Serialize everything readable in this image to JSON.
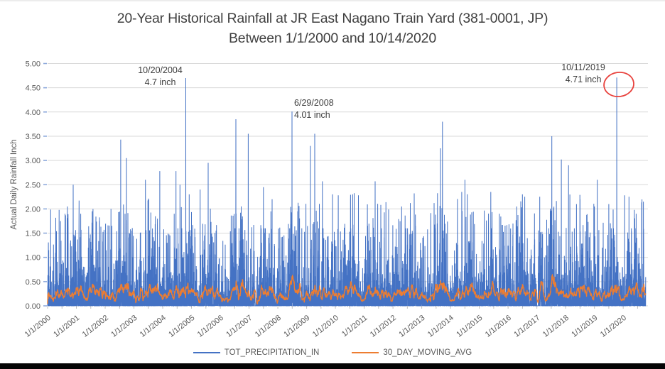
{
  "chart_data": {
    "type": "line",
    "title": "20-Year Historical Rainfall at JR East Nagano Train Yard (381-0001, JP)",
    "subtitle": "Between 1/1/2000 and 10/14/2020",
    "ylabel": "Actual Daily Rainfall Inch",
    "ylim": [
      0,
      5
    ],
    "ytick_step": 0.5,
    "y_ticks": [
      "5.00",
      "4.50",
      "4.00",
      "3.50",
      "3.00",
      "2.50",
      "2.00",
      "1.50",
      "1.00",
      "0.50",
      "0.00"
    ],
    "x_ticks": [
      "1/1/2000",
      "1/1/2001",
      "1/1/2002",
      "1/1/2003",
      "1/1/2004",
      "1/1/2005",
      "1/1/2006",
      "1/1/2007",
      "1/1/2008",
      "1/1/2009",
      "1/1/2010",
      "1/1/2011",
      "1/1/2012",
      "1/1/2013",
      "1/1/2014",
      "1/1/2015",
      "1/1/2016",
      "1/1/2017",
      "1/1/2018",
      "1/1/2019",
      "1/1/2020"
    ],
    "x_start": "1/1/2000",
    "x_end": "10/14/2020",
    "grid": true,
    "legend_position": "bottom",
    "series": [
      {
        "name": "TOT_PRECIPITATION_IN",
        "color": "#4472C4",
        "kind": "daily"
      },
      {
        "name": "30_DAY_MOVING_AVG",
        "color": "#ED7D31",
        "kind": "moving-average",
        "window_days": 30
      }
    ],
    "annotations": [
      {
        "date": "10/20/2004",
        "value_label": "4.7 inch",
        "value": 4.7,
        "year": 2004.802,
        "circled": false
      },
      {
        "date": "6/29/2008",
        "value_label": "4.01 inch",
        "value": 4.01,
        "year": 2008.493,
        "circled": false
      },
      {
        "date": "10/11/2019",
        "value_label": "4.71 inch",
        "value": 4.71,
        "year": 2019.775,
        "circled": true
      }
    ],
    "notable_peaks": [
      {
        "year": 2000.45,
        "value": 1.75
      },
      {
        "year": 2000.69,
        "value": 2.05
      },
      {
        "year": 2000.89,
        "value": 2.5
      },
      {
        "year": 2001.15,
        "value": 1.9
      },
      {
        "year": 2001.55,
        "value": 1.95
      },
      {
        "year": 2001.8,
        "value": 1.75
      },
      {
        "year": 2002.2,
        "value": 2.0
      },
      {
        "year": 2002.54,
        "value": 3.43
      },
      {
        "year": 2002.74,
        "value": 3.05
      },
      {
        "year": 2003.4,
        "value": 2.6
      },
      {
        "year": 2003.9,
        "value": 2.78
      },
      {
        "year": 2004.46,
        "value": 2.78
      },
      {
        "year": 2004.6,
        "value": 2.5
      },
      {
        "year": 2004.92,
        "value": 2.3
      },
      {
        "year": 2005.3,
        "value": 2.4
      },
      {
        "year": 2005.58,
        "value": 2.95
      },
      {
        "year": 2006.54,
        "value": 3.85
      },
      {
        "year": 2006.97,
        "value": 3.55
      },
      {
        "year": 2007.5,
        "value": 2.45
      },
      {
        "year": 2007.8,
        "value": 2.2
      },
      {
        "year": 2009.13,
        "value": 3.3
      },
      {
        "year": 2009.28,
        "value": 3.55
      },
      {
        "year": 2009.55,
        "value": 2.57
      },
      {
        "year": 2009.9,
        "value": 2.3
      },
      {
        "year": 2010.1,
        "value": 2.28
      },
      {
        "year": 2010.6,
        "value": 2.3
      },
      {
        "year": 2010.8,
        "value": 2.28
      },
      {
        "year": 2011.38,
        "value": 2.57
      },
      {
        "year": 2011.7,
        "value": 1.93
      },
      {
        "year": 2011.85,
        "value": 1.99
      },
      {
        "year": 2012.3,
        "value": 2.05
      },
      {
        "year": 2012.74,
        "value": 2.32
      },
      {
        "year": 2013.65,
        "value": 3.25
      },
      {
        "year": 2013.72,
        "value": 3.8
      },
      {
        "year": 2014.39,
        "value": 2.35
      },
      {
        "year": 2014.5,
        "value": 2.6
      },
      {
        "year": 2015.4,
        "value": 2.35
      },
      {
        "year": 2015.7,
        "value": 1.9
      },
      {
        "year": 2016.3,
        "value": 2.05
      },
      {
        "year": 2016.58,
        "value": 2.25
      },
      {
        "year": 2017.1,
        "value": 2.25
      },
      {
        "year": 2017.52,
        "value": 3.5
      },
      {
        "year": 2017.85,
        "value": 3.02
      },
      {
        "year": 2018.1,
        "value": 2.9
      },
      {
        "year": 2018.5,
        "value": 2.2
      },
      {
        "year": 2019.0,
        "value": 2.05
      },
      {
        "year": 2019.1,
        "value": 2.6
      },
      {
        "year": 2019.5,
        "value": 2.1
      },
      {
        "year": 2020.05,
        "value": 2.28
      },
      {
        "year": 2020.2,
        "value": 2.25
      },
      {
        "year": 2020.45,
        "value": 1.9
      },
      {
        "year": 2020.7,
        "value": 2.15
      }
    ],
    "colors": {
      "grid": "#D9D9D9",
      "axis_text": "#595959",
      "title_text": "#404040",
      "annotation_text": "#3d3d3d",
      "highlight_ellipse": "#E8413C",
      "y_tick": "#8FAADC",
      "x_tick": "#BFBFBF"
    }
  }
}
